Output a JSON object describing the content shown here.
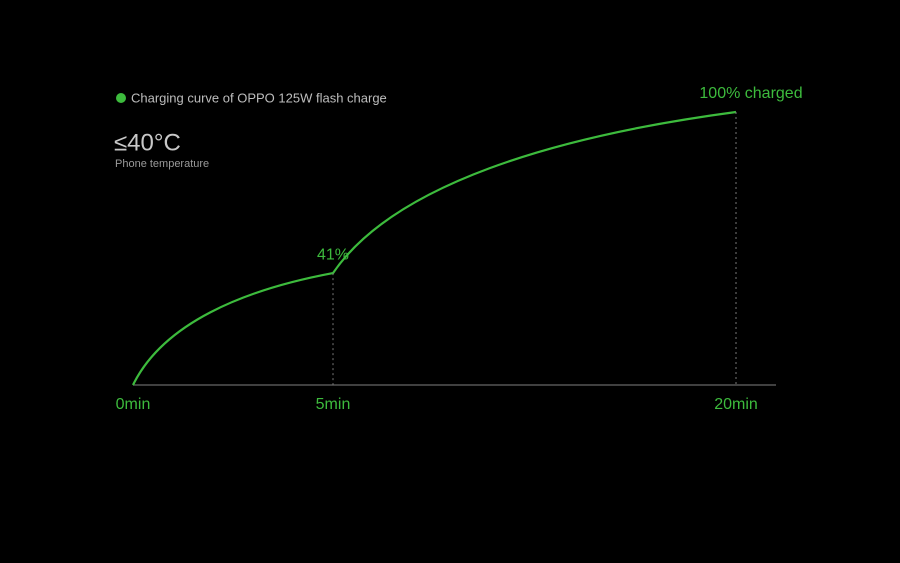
{
  "chart_data": {
    "type": "line",
    "series": [
      {
        "name": "Charging curve of OPPO 125W flash charge",
        "color": "#3dbb3d",
        "values": [
          0,
          41,
          100
        ],
        "value_labels": [
          null,
          "41%",
          "100% charged"
        ]
      }
    ],
    "categories": [
      "0min",
      "5min",
      "20min"
    ],
    "annotations": {
      "temperature": "≤40°C",
      "temperature_caption": "Phone temperature"
    },
    "ylim": [
      0,
      100
    ]
  }
}
